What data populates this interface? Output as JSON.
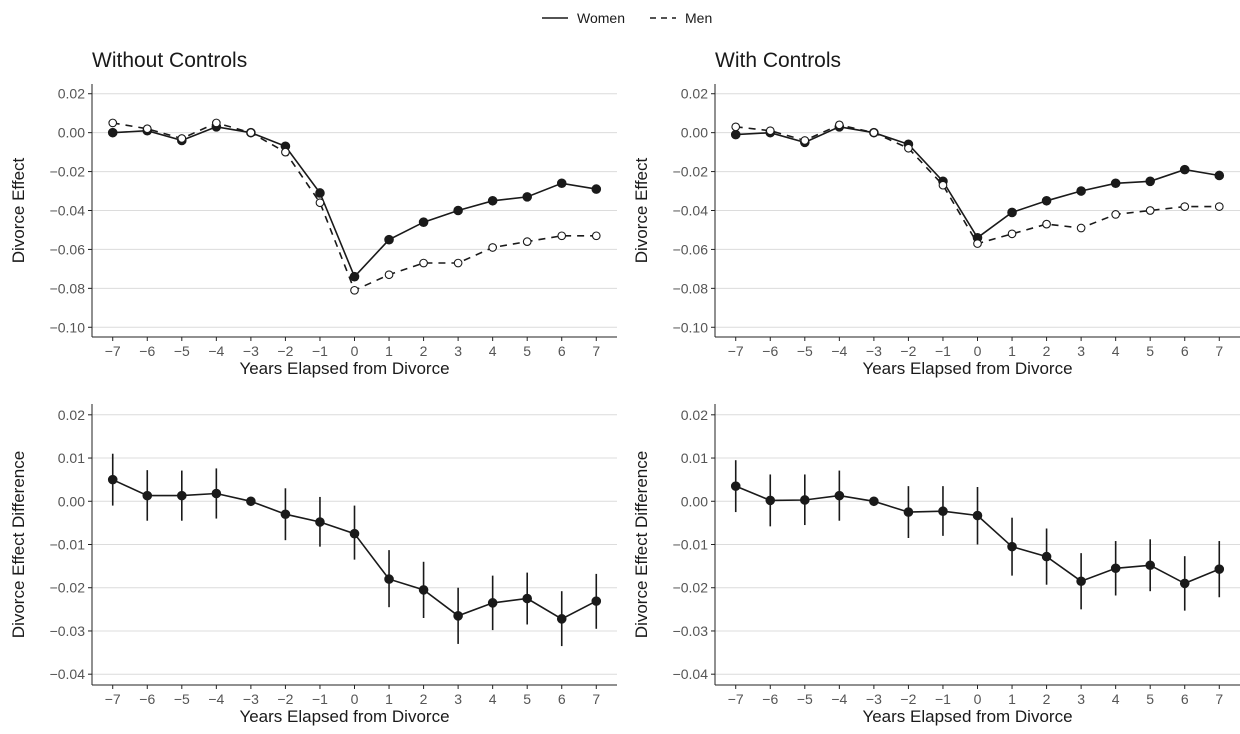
{
  "legend": {
    "women_label": "Women",
    "men_label": "Men"
  },
  "chart_data": [
    {
      "type": "line",
      "title": "Without Controls",
      "xlabel": "Years Elapsed from Divorce",
      "ylabel": "Divorce Effect",
      "x": [
        -7,
        -6,
        -5,
        -4,
        -3,
        -2,
        -1,
        0,
        1,
        2,
        3,
        4,
        5,
        6,
        7
      ],
      "ylim": [
        -0.105,
        0.025
      ],
      "yticks": [
        0.02,
        0.0,
        -0.02,
        -0.04,
        -0.06,
        -0.08,
        -0.1
      ],
      "ytick_labels": [
        "0.02",
        "0.00",
        "−0.02",
        "−0.04",
        "−0.06",
        "−0.08",
        "−0.10"
      ],
      "grid": "horizontal",
      "series": [
        {
          "name": "Women",
          "style": "solid",
          "marker": "filled-circle",
          "values": [
            0.0,
            0.001,
            -0.004,
            0.003,
            0.0,
            -0.007,
            -0.031,
            -0.074,
            -0.055,
            -0.046,
            -0.04,
            -0.035,
            -0.033,
            -0.026,
            -0.029
          ]
        },
        {
          "name": "Men",
          "style": "dashed",
          "marker": "open-circle",
          "values": [
            0.005,
            0.002,
            -0.003,
            0.005,
            0.0,
            -0.01,
            -0.036,
            -0.081,
            -0.073,
            -0.067,
            -0.067,
            -0.059,
            -0.056,
            -0.053,
            -0.053
          ]
        }
      ]
    },
    {
      "type": "line",
      "title": "With Controls",
      "xlabel": "Years Elapsed from Divorce",
      "ylabel": "Divorce Effect",
      "x": [
        -7,
        -6,
        -5,
        -4,
        -3,
        -2,
        -1,
        0,
        1,
        2,
        3,
        4,
        5,
        6,
        7
      ],
      "ylim": [
        -0.105,
        0.025
      ],
      "yticks": [
        0.02,
        0.0,
        -0.02,
        -0.04,
        -0.06,
        -0.08,
        -0.1
      ],
      "ytick_labels": [
        "0.02",
        "0.00",
        "−0.02",
        "−0.04",
        "−0.06",
        "−0.08",
        "−0.10"
      ],
      "grid": "horizontal",
      "series": [
        {
          "name": "Women",
          "style": "solid",
          "marker": "filled-circle",
          "values": [
            -0.001,
            0.0,
            -0.005,
            0.003,
            0.0,
            -0.006,
            -0.025,
            -0.054,
            -0.041,
            -0.035,
            -0.03,
            -0.026,
            -0.025,
            -0.019,
            -0.022
          ]
        },
        {
          "name": "Men",
          "style": "dashed",
          "marker": "open-circle",
          "values": [
            0.003,
            0.001,
            -0.004,
            0.004,
            0.0,
            -0.008,
            -0.027,
            -0.057,
            -0.052,
            -0.047,
            -0.049,
            -0.042,
            -0.04,
            -0.038,
            -0.038
          ]
        }
      ]
    },
    {
      "type": "line",
      "title": "",
      "xlabel": "Years Elapsed from Divorce",
      "ylabel": "Divorce Effect Difference",
      "x": [
        -7,
        -6,
        -5,
        -4,
        -3,
        -2,
        -1,
        0,
        1,
        2,
        3,
        4,
        5,
        6,
        7
      ],
      "ylim": [
        -0.0425,
        0.0225
      ],
      "yticks": [
        0.02,
        0.01,
        0.0,
        -0.01,
        -0.02,
        -0.03,
        -0.04
      ],
      "ytick_labels": [
        "0.02",
        "0.01",
        "0.00",
        "−0.01",
        "−0.02",
        "−0.03",
        "−0.04"
      ],
      "grid": "horizontal",
      "error_bars": true,
      "series": [
        {
          "name": "",
          "style": "solid",
          "marker": "filled-circle",
          "values": [
            0.005,
            0.0013,
            0.0013,
            0.0018,
            0.0,
            -0.003,
            -0.0048,
            -0.0075,
            -0.018,
            -0.0205,
            -0.0265,
            -0.0235,
            -0.0225,
            -0.0272,
            -0.0231
          ],
          "lower": [
            -0.001,
            -0.0045,
            -0.0045,
            -0.004,
            0.0,
            -0.009,
            -0.0105,
            -0.0135,
            -0.0245,
            -0.027,
            -0.033,
            -0.0298,
            -0.0285,
            -0.0335,
            -0.0295
          ],
          "upper": [
            0.011,
            0.0072,
            0.0071,
            0.0076,
            0.0,
            0.003,
            0.001,
            -0.001,
            -0.0113,
            -0.014,
            -0.02,
            -0.0172,
            -0.0165,
            -0.0208,
            -0.0168
          ]
        }
      ]
    },
    {
      "type": "line",
      "title": "",
      "xlabel": "Years Elapsed from Divorce",
      "ylabel": "Divorce Effect Difference",
      "x": [
        -7,
        -6,
        -5,
        -4,
        -3,
        -2,
        -1,
        0,
        1,
        2,
        3,
        4,
        5,
        6,
        7
      ],
      "ylim": [
        -0.0425,
        0.0225
      ],
      "yticks": [
        0.02,
        0.01,
        0.0,
        -0.01,
        -0.02,
        -0.03,
        -0.04
      ],
      "ytick_labels": [
        "0.02",
        "0.01",
        "0.00",
        "−0.01",
        "−0.02",
        "−0.03",
        "−0.04"
      ],
      "grid": "horizontal",
      "error_bars": true,
      "series": [
        {
          "name": "",
          "style": "solid",
          "marker": "filled-circle",
          "values": [
            0.0035,
            0.0002,
            0.0003,
            0.0013,
            0.0,
            -0.0025,
            -0.0023,
            -0.0033,
            -0.0105,
            -0.0128,
            -0.0185,
            -0.0155,
            -0.0148,
            -0.019,
            -0.0157
          ],
          "lower": [
            -0.0025,
            -0.0058,
            -0.0055,
            -0.0045,
            0.0,
            -0.0085,
            -0.008,
            -0.01,
            -0.0172,
            -0.0193,
            -0.025,
            -0.0218,
            -0.0208,
            -0.0253,
            -0.0222
          ],
          "upper": [
            0.0095,
            0.0062,
            0.0062,
            0.0071,
            0.0,
            0.0035,
            0.0035,
            0.0033,
            -0.0038,
            -0.0063,
            -0.012,
            -0.0092,
            -0.0088,
            -0.0127,
            -0.0092
          ]
        }
      ]
    }
  ]
}
